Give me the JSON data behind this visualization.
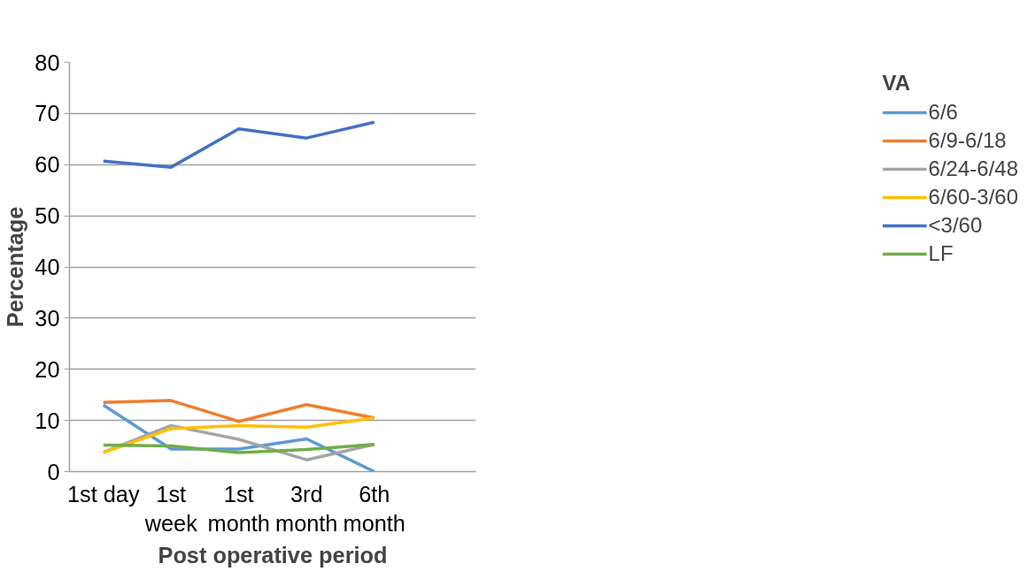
{
  "chart_data": {
    "type": "line",
    "xlabel": "Post operative period",
    "ylabel": "Percentage",
    "legend_title": "VA",
    "categories": [
      "1st day",
      "1st week",
      "1st month",
      "3rd month",
      "6th month",
      null
    ],
    "ylim": [
      0,
      80
    ],
    "yticks": [
      0,
      10,
      20,
      30,
      40,
      50,
      60,
      70,
      80
    ],
    "grid": "y",
    "legend": "right",
    "marker": "none",
    "line_style": "solid",
    "series": [
      {
        "name": "6/6",
        "color": "#5b9bd5",
        "values": [
          13,
          4.4,
          4.4,
          6.4,
          0,
          null
        ]
      },
      {
        "name": "6/9-6/18",
        "color": "#ed7d31",
        "values": [
          13.5,
          13.9,
          9.8,
          13.1,
          10.5,
          null
        ]
      },
      {
        "name": "6/24-6/48",
        "color": "#a5a5a5",
        "values": [
          3.8,
          9,
          6.3,
          2.3,
          5.3,
          null
        ]
      },
      {
        "name": "6/60-3/60",
        "color": "#ffc000",
        "values": [
          3.7,
          8.4,
          9,
          8.7,
          10.5,
          null
        ]
      },
      {
        "name": "<3/60",
        "color": "#4472c4",
        "values": [
          60.7,
          59.5,
          67,
          65.2,
          68.3,
          null
        ]
      },
      {
        "name": "LF",
        "color": "#70ad47",
        "values": [
          5.2,
          5,
          3.7,
          4.3,
          5.3,
          null
        ]
      }
    ]
  }
}
